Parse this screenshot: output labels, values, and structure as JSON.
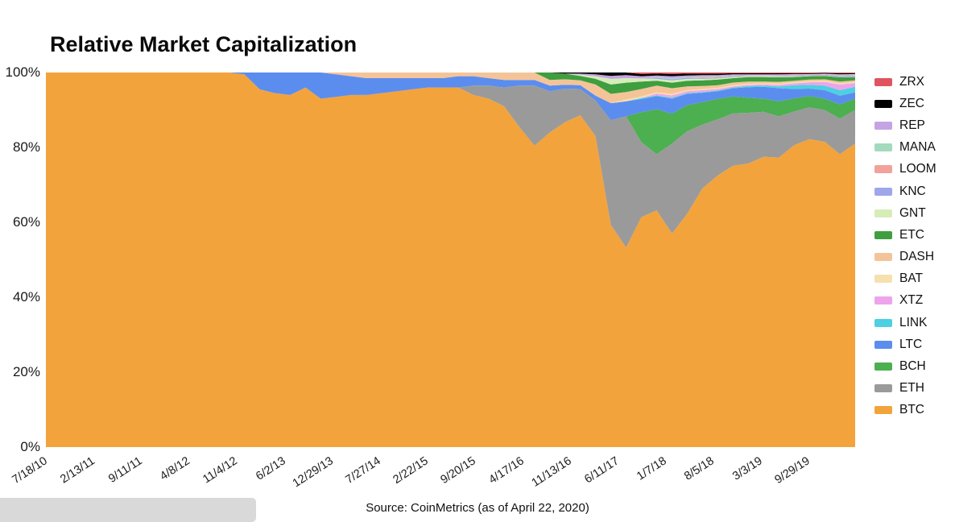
{
  "page": {
    "title": "Relative Market Capitalization",
    "source_note": "Source: CoinMetrics (as of April 22, 2020)"
  },
  "chart_data": {
    "type": "area",
    "stacked": true,
    "normalized_to_percent": true,
    "title": "Relative Market Capitalization",
    "ylabel": "",
    "xlabel": "",
    "ylim": [
      0,
      100
    ],
    "grid": false,
    "legend_position": "right",
    "y_tick_labels": [
      "100%",
      "80%",
      "60%",
      "40%",
      "20%",
      "0%"
    ],
    "x_tick_labels": [
      "7/18/10",
      "2/13/11",
      "9/11/11",
      "4/8/12",
      "11/4/12",
      "6/2/13",
      "12/29/13",
      "7/27/14",
      "2/22/15",
      "9/20/15",
      "4/17/16",
      "11/13/16",
      "6/11/17",
      "1/7/18",
      "8/5/18",
      "3/3/19",
      "9/29/19"
    ],
    "x_tick_positions": [
      0,
      0.0589,
      0.1178,
      0.1767,
      0.2356,
      0.2945,
      0.3534,
      0.4123,
      0.4712,
      0.5301,
      0.589,
      0.6479,
      0.7068,
      0.7657,
      0.8246,
      0.8835,
      0.9424
    ],
    "x_sample_count": 54,
    "x_sample_spacing": "uniform fractions 0..1 across the date axis (7/18/10 to 4/22/20)",
    "legend_order_top_to_bottom": [
      "ZRX",
      "ZEC",
      "REP",
      "MANA",
      "LOOM",
      "KNC",
      "GNT",
      "ETC",
      "DASH",
      "BAT",
      "XTZ",
      "LINK",
      "LTC",
      "BCH",
      "ETH",
      "BTC"
    ],
    "series": [
      {
        "name": "BTC",
        "color": "#f3a33c",
        "values": [
          100,
          100,
          100,
          100,
          100,
          100,
          100,
          100,
          100,
          100,
          100,
          100,
          100,
          99.5,
          95.5,
          94.5,
          94,
          96,
          93,
          93.5,
          94,
          94,
          94.5,
          95,
          95.5,
          96,
          96,
          96,
          94,
          93,
          91,
          85.5,
          80.5,
          84,
          86.7,
          88.6,
          83,
          59.3,
          53.3,
          61.4,
          63.2,
          57,
          62.3,
          69.1,
          72.5,
          75.2,
          75.4,
          77.5,
          77.3,
          80.6,
          82.2,
          81.5,
          78.2,
          81
        ]
      },
      {
        "name": "ETH",
        "color": "#9a9a9a",
        "values": [
          0,
          0,
          0,
          0,
          0,
          0,
          0,
          0,
          0,
          0,
          0,
          0,
          0,
          0,
          0,
          0,
          0,
          0,
          0,
          0,
          0,
          0,
          0,
          0,
          0,
          0,
          0,
          0,
          2.5,
          3.5,
          5,
          11,
          16,
          11,
          9,
          7,
          9.5,
          28,
          35,
          20,
          15,
          24,
          22,
          17,
          15,
          14,
          13.5,
          12,
          11,
          9,
          8.5,
          8.5,
          9.5,
          9
        ]
      },
      {
        "name": "BCH",
        "color": "#4caf50",
        "values": [
          0,
          0,
          0,
          0,
          0,
          0,
          0,
          0,
          0,
          0,
          0,
          0,
          0,
          0,
          0,
          0,
          0,
          0,
          0,
          0,
          0,
          0,
          0,
          0,
          0,
          0,
          0,
          0,
          0,
          0,
          0,
          0,
          0,
          0,
          0,
          0,
          0,
          0,
          0,
          8,
          12,
          8,
          7,
          6,
          5.5,
          4.5,
          4,
          3.5,
          4,
          3.5,
          3,
          3,
          3.8,
          3
        ]
      },
      {
        "name": "LTC",
        "color": "#5b8def",
        "values": [
          0,
          0,
          0,
          0,
          0,
          0,
          0,
          0,
          0,
          0,
          0,
          0,
          0,
          0.5,
          4.5,
          5.5,
          6,
          4,
          7,
          6,
          5,
          4.5,
          4,
          3.5,
          3,
          2.5,
          2.5,
          3,
          2.5,
          2,
          2,
          1.5,
          1.5,
          1.5,
          1,
          1,
          1.3,
          4.5,
          4,
          3.5,
          3.5,
          4,
          3,
          2.5,
          2,
          2.2,
          2.8,
          3.2,
          3.5,
          2.5,
          2,
          2.3,
          2.3,
          1.7
        ]
      },
      {
        "name": "LINK",
        "color": "#4dd0e1",
        "values": [
          0,
          0,
          0,
          0,
          0,
          0,
          0,
          0,
          0,
          0,
          0,
          0,
          0,
          0,
          0,
          0,
          0,
          0,
          0,
          0,
          0,
          0,
          0,
          0,
          0,
          0,
          0,
          0,
          0,
          0,
          0,
          0,
          0,
          0,
          0,
          0,
          0,
          0,
          0,
          0.3,
          0.2,
          0.3,
          0.2,
          0.2,
          0.2,
          0.2,
          0.3,
          0.3,
          0.5,
          1,
          1,
          1.2,
          1.5,
          1.5
        ]
      },
      {
        "name": "XTZ",
        "color": "#eda4ed",
        "values": [
          0,
          0,
          0,
          0,
          0,
          0,
          0,
          0,
          0,
          0,
          0,
          0,
          0,
          0,
          0,
          0,
          0,
          0,
          0,
          0,
          0,
          0,
          0,
          0,
          0,
          0,
          0,
          0,
          0,
          0,
          0,
          0,
          0,
          0,
          0,
          0,
          0,
          0,
          0,
          0,
          0.5,
          0.6,
          0.5,
          0.5,
          0.4,
          0.3,
          0.3,
          0.3,
          0.4,
          0.5,
          0.7,
          1,
          1.5,
          1
        ]
      },
      {
        "name": "BAT",
        "color": "#f6e0ae",
        "values": [
          0,
          0,
          0,
          0,
          0,
          0,
          0,
          0,
          0,
          0,
          0,
          0,
          0,
          0,
          0,
          0,
          0,
          0,
          0,
          0,
          0,
          0,
          0,
          0,
          0,
          0,
          0,
          0,
          0,
          0,
          0,
          0,
          0,
          0,
          0,
          0,
          0,
          0,
          0.5,
          0.4,
          0.3,
          0.4,
          0.3,
          0.3,
          0.3,
          0.3,
          0.3,
          0.3,
          0.3,
          0.3,
          0.3,
          0.3,
          0.3,
          0.3
        ]
      },
      {
        "name": "DASH",
        "color": "#f4c498",
        "values": [
          0,
          0,
          0,
          0,
          0,
          0,
          0,
          0,
          0,
          0,
          0,
          0,
          0,
          0,
          0,
          0,
          0,
          0,
          0,
          0.5,
          1,
          1.5,
          1.5,
          1.5,
          1.5,
          1.5,
          1.5,
          1,
          1,
          1.5,
          2,
          2,
          2,
          1.5,
          1.5,
          1.3,
          3,
          2.5,
          2,
          2,
          1.8,
          1.5,
          1,
          0.8,
          0.7,
          0.7,
          0.6,
          0.5,
          0.5,
          0.4,
          0.4,
          0.4,
          0.5,
          0.4
        ]
      },
      {
        "name": "ETC",
        "color": "#3f9e3f",
        "values": [
          0,
          0,
          0,
          0,
          0,
          0,
          0,
          0,
          0,
          0,
          0,
          0,
          0,
          0,
          0,
          0,
          0,
          0,
          0,
          0,
          0,
          0,
          0,
          0,
          0,
          0,
          0,
          0,
          0,
          0,
          0,
          0,
          0,
          2,
          1.5,
          1.2,
          1.5,
          2.5,
          2.5,
          2,
          1.3,
          1.5,
          1.5,
          1.5,
          1.5,
          1.2,
          1.2,
          1.2,
          1.2,
          1,
          0.9,
          0.9,
          1.1,
          0.9
        ]
      },
      {
        "name": "GNT",
        "color": "#d6edb8",
        "values": [
          0,
          0,
          0,
          0,
          0,
          0,
          0,
          0,
          0,
          0,
          0,
          0,
          0,
          0,
          0,
          0,
          0,
          0,
          0,
          0,
          0,
          0,
          0,
          0,
          0,
          0,
          0,
          0,
          0,
          0,
          0,
          0,
          0,
          0,
          0,
          0.3,
          0.7,
          1.5,
          1.2,
          0.8,
          0.5,
          0.6,
          0.5,
          0.4,
          0.3,
          0.3,
          0.2,
          0.2,
          0.2,
          0.2,
          0.1,
          0.1,
          0.1,
          0.1
        ]
      },
      {
        "name": "KNC",
        "color": "#a0a6ea",
        "values": [
          0,
          0,
          0,
          0,
          0,
          0,
          0,
          0,
          0,
          0,
          0,
          0,
          0,
          0,
          0,
          0,
          0,
          0,
          0,
          0,
          0,
          0,
          0,
          0,
          0,
          0,
          0,
          0,
          0,
          0,
          0,
          0,
          0,
          0,
          0,
          0,
          0,
          0,
          0,
          0,
          0.3,
          0.3,
          0.3,
          0.2,
          0.2,
          0.2,
          0.1,
          0.1,
          0.2,
          0.2,
          0.2,
          0.2,
          0.3,
          0.3
        ]
      },
      {
        "name": "LOOM",
        "color": "#f2a19b",
        "values": [
          0,
          0,
          0,
          0,
          0,
          0,
          0,
          0,
          0,
          0,
          0,
          0,
          0,
          0,
          0,
          0,
          0,
          0,
          0,
          0,
          0,
          0,
          0,
          0,
          0,
          0,
          0,
          0,
          0,
          0,
          0,
          0,
          0,
          0,
          0,
          0,
          0,
          0,
          0,
          0,
          0,
          0,
          0,
          0.2,
          0.2,
          0.1,
          0.1,
          0.1,
          0.1,
          0.1,
          0.1,
          0.1,
          0.1,
          0.1
        ]
      },
      {
        "name": "MANA",
        "color": "#a3dabe",
        "values": [
          0,
          0,
          0,
          0,
          0,
          0,
          0,
          0,
          0,
          0,
          0,
          0,
          0,
          0,
          0,
          0,
          0,
          0,
          0,
          0,
          0,
          0,
          0,
          0,
          0,
          0,
          0,
          0,
          0,
          0,
          0,
          0,
          0,
          0,
          0,
          0,
          0,
          0,
          0,
          0,
          0.2,
          0.3,
          0.2,
          0.2,
          0.2,
          0.1,
          0.1,
          0.1,
          0.1,
          0.1,
          0.1,
          0.1,
          0.2,
          0.2
        ]
      },
      {
        "name": "REP",
        "color": "#c4a4e2",
        "values": [
          0,
          0,
          0,
          0,
          0,
          0,
          0,
          0,
          0,
          0,
          0,
          0,
          0,
          0,
          0,
          0,
          0,
          0,
          0,
          0,
          0,
          0,
          0,
          0,
          0,
          0,
          0,
          0,
          0,
          0,
          0,
          0,
          0,
          0,
          0,
          0.3,
          0.5,
          0.8,
          0.8,
          0.6,
          0.4,
          0.5,
          0.4,
          0.4,
          0.3,
          0.3,
          0.2,
          0.2,
          0.2,
          0.2,
          0.1,
          0.1,
          0.1,
          0.1
        ]
      },
      {
        "name": "ZEC",
        "color": "#000000",
        "values": [
          0,
          0,
          0,
          0,
          0,
          0,
          0,
          0,
          0,
          0,
          0,
          0,
          0,
          0,
          0,
          0,
          0,
          0,
          0,
          0,
          0,
          0,
          0,
          0,
          0,
          0,
          0,
          0,
          0,
          0,
          0,
          0,
          0,
          0,
          0.3,
          0.3,
          0.5,
          0.9,
          0.7,
          0.6,
          0.5,
          0.6,
          0.5,
          0.4,
          0.4,
          0.3,
          0.3,
          0.3,
          0.3,
          0.2,
          0.2,
          0.2,
          0.3,
          0.2
        ]
      },
      {
        "name": "ZRX",
        "color": "#e0545f",
        "values": [
          0,
          0,
          0,
          0,
          0,
          0,
          0,
          0,
          0,
          0,
          0,
          0,
          0,
          0,
          0,
          0,
          0,
          0,
          0,
          0,
          0,
          0,
          0,
          0,
          0,
          0,
          0,
          0,
          0,
          0,
          0,
          0,
          0,
          0,
          0,
          0,
          0,
          0,
          0,
          0.4,
          0.3,
          0.4,
          0.3,
          0.3,
          0.3,
          0.2,
          0.2,
          0.2,
          0.2,
          0.2,
          0.2,
          0.1,
          0.2,
          0.2
        ]
      }
    ]
  }
}
